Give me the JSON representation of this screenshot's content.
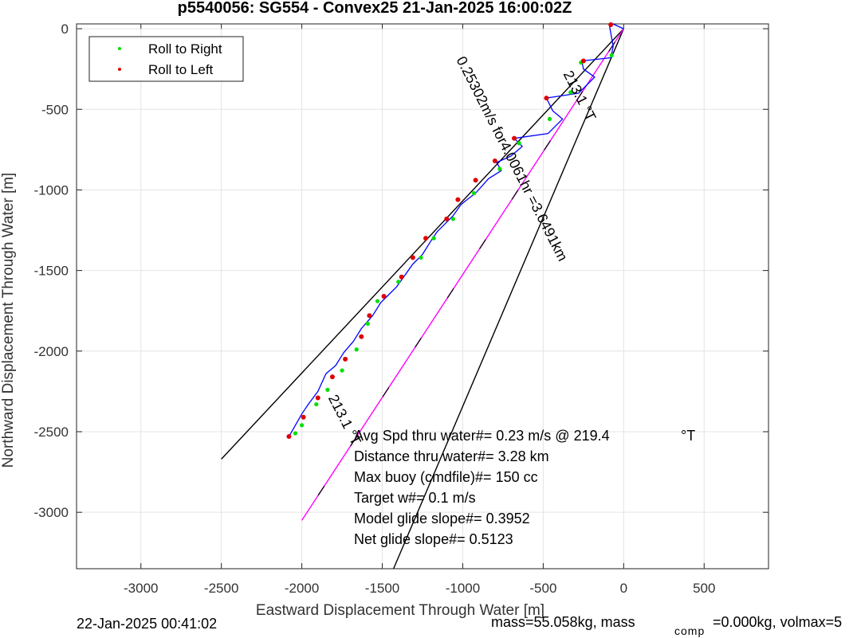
{
  "chart_data": {
    "type": "line",
    "title": "p5540056: SG554 - Convex25 21-Jan-2025 16:00:02Z",
    "xlabel": "Eastward Displacement Through Water [m]",
    "ylabel": "Northward Displacement Through Water [m]",
    "xlim": [
      -3400,
      900
    ],
    "ylim": [
      -3350,
      30
    ],
    "xticks": [
      -3000,
      -2500,
      -2000,
      -1500,
      -1000,
      -500,
      0,
      500
    ],
    "yticks": [
      0,
      -500,
      -1000,
      -1500,
      -2000,
      -2500,
      -3000
    ],
    "grid": true,
    "legend": {
      "position": "top-left",
      "entries": [
        {
          "label": "Roll to Right",
          "color": "#00e000"
        },
        {
          "label": "Roll to Left",
          "color": "#e00000"
        }
      ]
    },
    "track": {
      "color": "#0000ff",
      "points": [
        [
          0,
          0
        ],
        [
          -78,
          35
        ],
        [
          -88,
          15
        ],
        [
          -65,
          -110
        ],
        [
          -80,
          -180
        ],
        [
          -260,
          -200
        ],
        [
          -250,
          -250
        ],
        [
          -180,
          -300
        ],
        [
          -280,
          -400
        ],
        [
          -480,
          -430
        ],
        [
          -440,
          -510
        ],
        [
          -380,
          -560
        ],
        [
          -470,
          -650
        ],
        [
          -680,
          -680
        ],
        [
          -630,
          -730
        ],
        [
          -700,
          -790
        ],
        [
          -790,
          -830
        ],
        [
          -760,
          -880
        ],
        [
          -840,
          -930
        ],
        [
          -920,
          -1020
        ],
        [
          -960,
          -1050
        ],
        [
          -1010,
          -1090
        ],
        [
          -1060,
          -1160
        ],
        [
          -1110,
          -1210
        ],
        [
          -1160,
          -1260
        ],
        [
          -1200,
          -1320
        ],
        [
          -1250,
          -1400
        ],
        [
          -1310,
          -1460
        ],
        [
          -1360,
          -1530
        ],
        [
          -1410,
          -1600
        ],
        [
          -1460,
          -1650
        ],
        [
          -1510,
          -1700
        ],
        [
          -1560,
          -1780
        ],
        [
          -1630,
          -1860
        ],
        [
          -1680,
          -1940
        ],
        [
          -1740,
          -2010
        ],
        [
          -1790,
          -2090
        ],
        [
          -1850,
          -2140
        ],
        [
          -1900,
          -2250
        ],
        [
          -1960,
          -2330
        ],
        [
          -2000,
          -2390
        ],
        [
          -2040,
          -2460
        ],
        [
          -2080,
          -2530
        ]
      ],
      "roll_right_points": [
        [
          -75,
          -165
        ],
        [
          -265,
          -210
        ],
        [
          -330,
          -395
        ],
        [
          -460,
          -560
        ],
        [
          -650,
          -710
        ],
        [
          -770,
          -870
        ],
        [
          -930,
          -1020
        ],
        [
          -1060,
          -1180
        ],
        [
          -1180,
          -1300
        ],
        [
          -1260,
          -1420
        ],
        [
          -1400,
          -1570
        ],
        [
          -1530,
          -1690
        ],
        [
          -1590,
          -1830
        ],
        [
          -1660,
          -1990
        ],
        [
          -1750,
          -2120
        ],
        [
          -1840,
          -2240
        ],
        [
          -1910,
          -2330
        ],
        [
          -2000,
          -2460
        ],
        [
          -2040,
          -2510
        ]
      ],
      "roll_left_points": [
        [
          -80,
          25
        ],
        [
          -250,
          -200
        ],
        [
          -480,
          -430
        ],
        [
          -680,
          -680
        ],
        [
          -800,
          -820
        ],
        [
          -920,
          -940
        ],
        [
          -1030,
          -1060
        ],
        [
          -1100,
          -1180
        ],
        [
          -1230,
          -1300
        ],
        [
          -1310,
          -1420
        ],
        [
          -1380,
          -1540
        ],
        [
          -1490,
          -1660
        ],
        [
          -1580,
          -1780
        ],
        [
          -1630,
          -1910
        ],
        [
          -1730,
          -2050
        ],
        [
          -1810,
          -2160
        ],
        [
          -1900,
          -2290
        ],
        [
          -1990,
          -2410
        ],
        [
          -2080,
          -2530
        ]
      ]
    },
    "lines": [
      {
        "name": "heading-line-1",
        "color": "#000000",
        "points": [
          [
            0,
            0
          ],
          [
            -2500,
            -2670
          ]
        ]
      },
      {
        "name": "heading-line-2",
        "color": "#000000",
        "points": [
          [
            0,
            0
          ],
          [
            -1430,
            -3350
          ]
        ]
      },
      {
        "name": "avg-line",
        "color": "#ff00ff",
        "dash_color": "#000000",
        "points": [
          [
            0,
            0
          ],
          [
            -2000,
            -3050
          ]
        ]
      }
    ],
    "rotated_annotations": [
      {
        "text": "213.1 °T",
        "at": [
          -300,
          -430
        ],
        "angle": 63
      },
      {
        "text": "0.25302m/s for4.0061hr =3.6491km",
        "at": [
          -720,
          -820
        ],
        "angle": 63
      },
      {
        "text": "213.1 °T",
        "at": [
          -1760,
          -2440
        ],
        "angle": 63
      }
    ],
    "annotations": [
      "Avg Spd thru water#=  0.23 m/s @ 219.4",
      "°T",
      "Distance thru water#=  3.28 km",
      "Max buoy (cmdfile)#= 150 cc",
      "Target w#= 0.1 m/s",
      "Model glide slope#= 0.3952",
      "Net glide slope#= 0.5123"
    ]
  },
  "footer": {
    "date": "22-Jan-2025 00:41:02",
    "mass_a": "mass=55.058kg, mass",
    "mass_sub": "comp",
    "mass_b": "=0.000kg, volmax=5"
  }
}
